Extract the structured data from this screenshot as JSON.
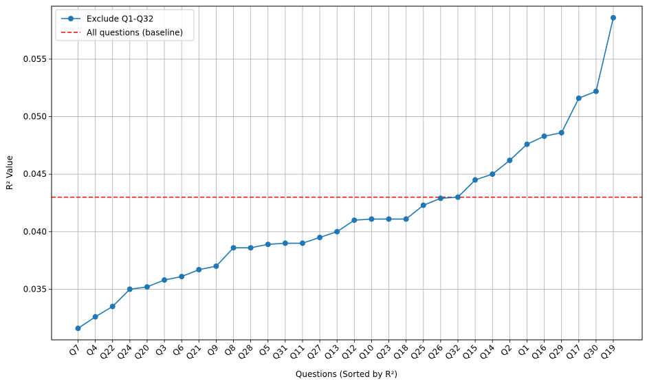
{
  "chart_data": {
    "type": "line",
    "title": "",
    "xlabel": "Questions (Sorted by R²)",
    "ylabel": "R² Value",
    "categories": [
      "Q7",
      "Q4",
      "Q22",
      "Q24",
      "Q20",
      "Q3",
      "Q6",
      "Q21",
      "Q9",
      "Q8",
      "Q28",
      "Q5",
      "Q31",
      "Q11",
      "Q27",
      "Q13",
      "Q12",
      "Q10",
      "Q23",
      "Q18",
      "Q25",
      "Q26",
      "Q32",
      "Q15",
      "Q14",
      "Q2",
      "Q1",
      "Q16",
      "Q29",
      "Q17",
      "Q30",
      "Q19"
    ],
    "series": [
      {
        "name": "Exclude Q1-Q32",
        "color": "#1f77b4",
        "marker": "circle",
        "values": [
          0.0316,
          0.0326,
          0.0335,
          0.035,
          0.0352,
          0.0358,
          0.0361,
          0.0367,
          0.037,
          0.0386,
          0.0386,
          0.0389,
          0.039,
          0.039,
          0.0395,
          0.04,
          0.041,
          0.0411,
          0.0411,
          0.0411,
          0.0423,
          0.0429,
          0.043,
          0.0445,
          0.045,
          0.0462,
          0.0476,
          0.0483,
          0.0486,
          0.0516,
          0.0522,
          0.0586
        ]
      }
    ],
    "baseline": {
      "name": "All questions (baseline)",
      "value": 0.043,
      "color": "#ff0000",
      "style": "dashed"
    },
    "ylim": [
      0.0306,
      0.0596
    ],
    "yticks": [
      0.035,
      0.04,
      0.045,
      0.05,
      0.055
    ],
    "ytick_labels": [
      "0.035",
      "0.040",
      "0.045",
      "0.050",
      "0.055"
    ],
    "grid": true,
    "legend_position": "top-left"
  }
}
